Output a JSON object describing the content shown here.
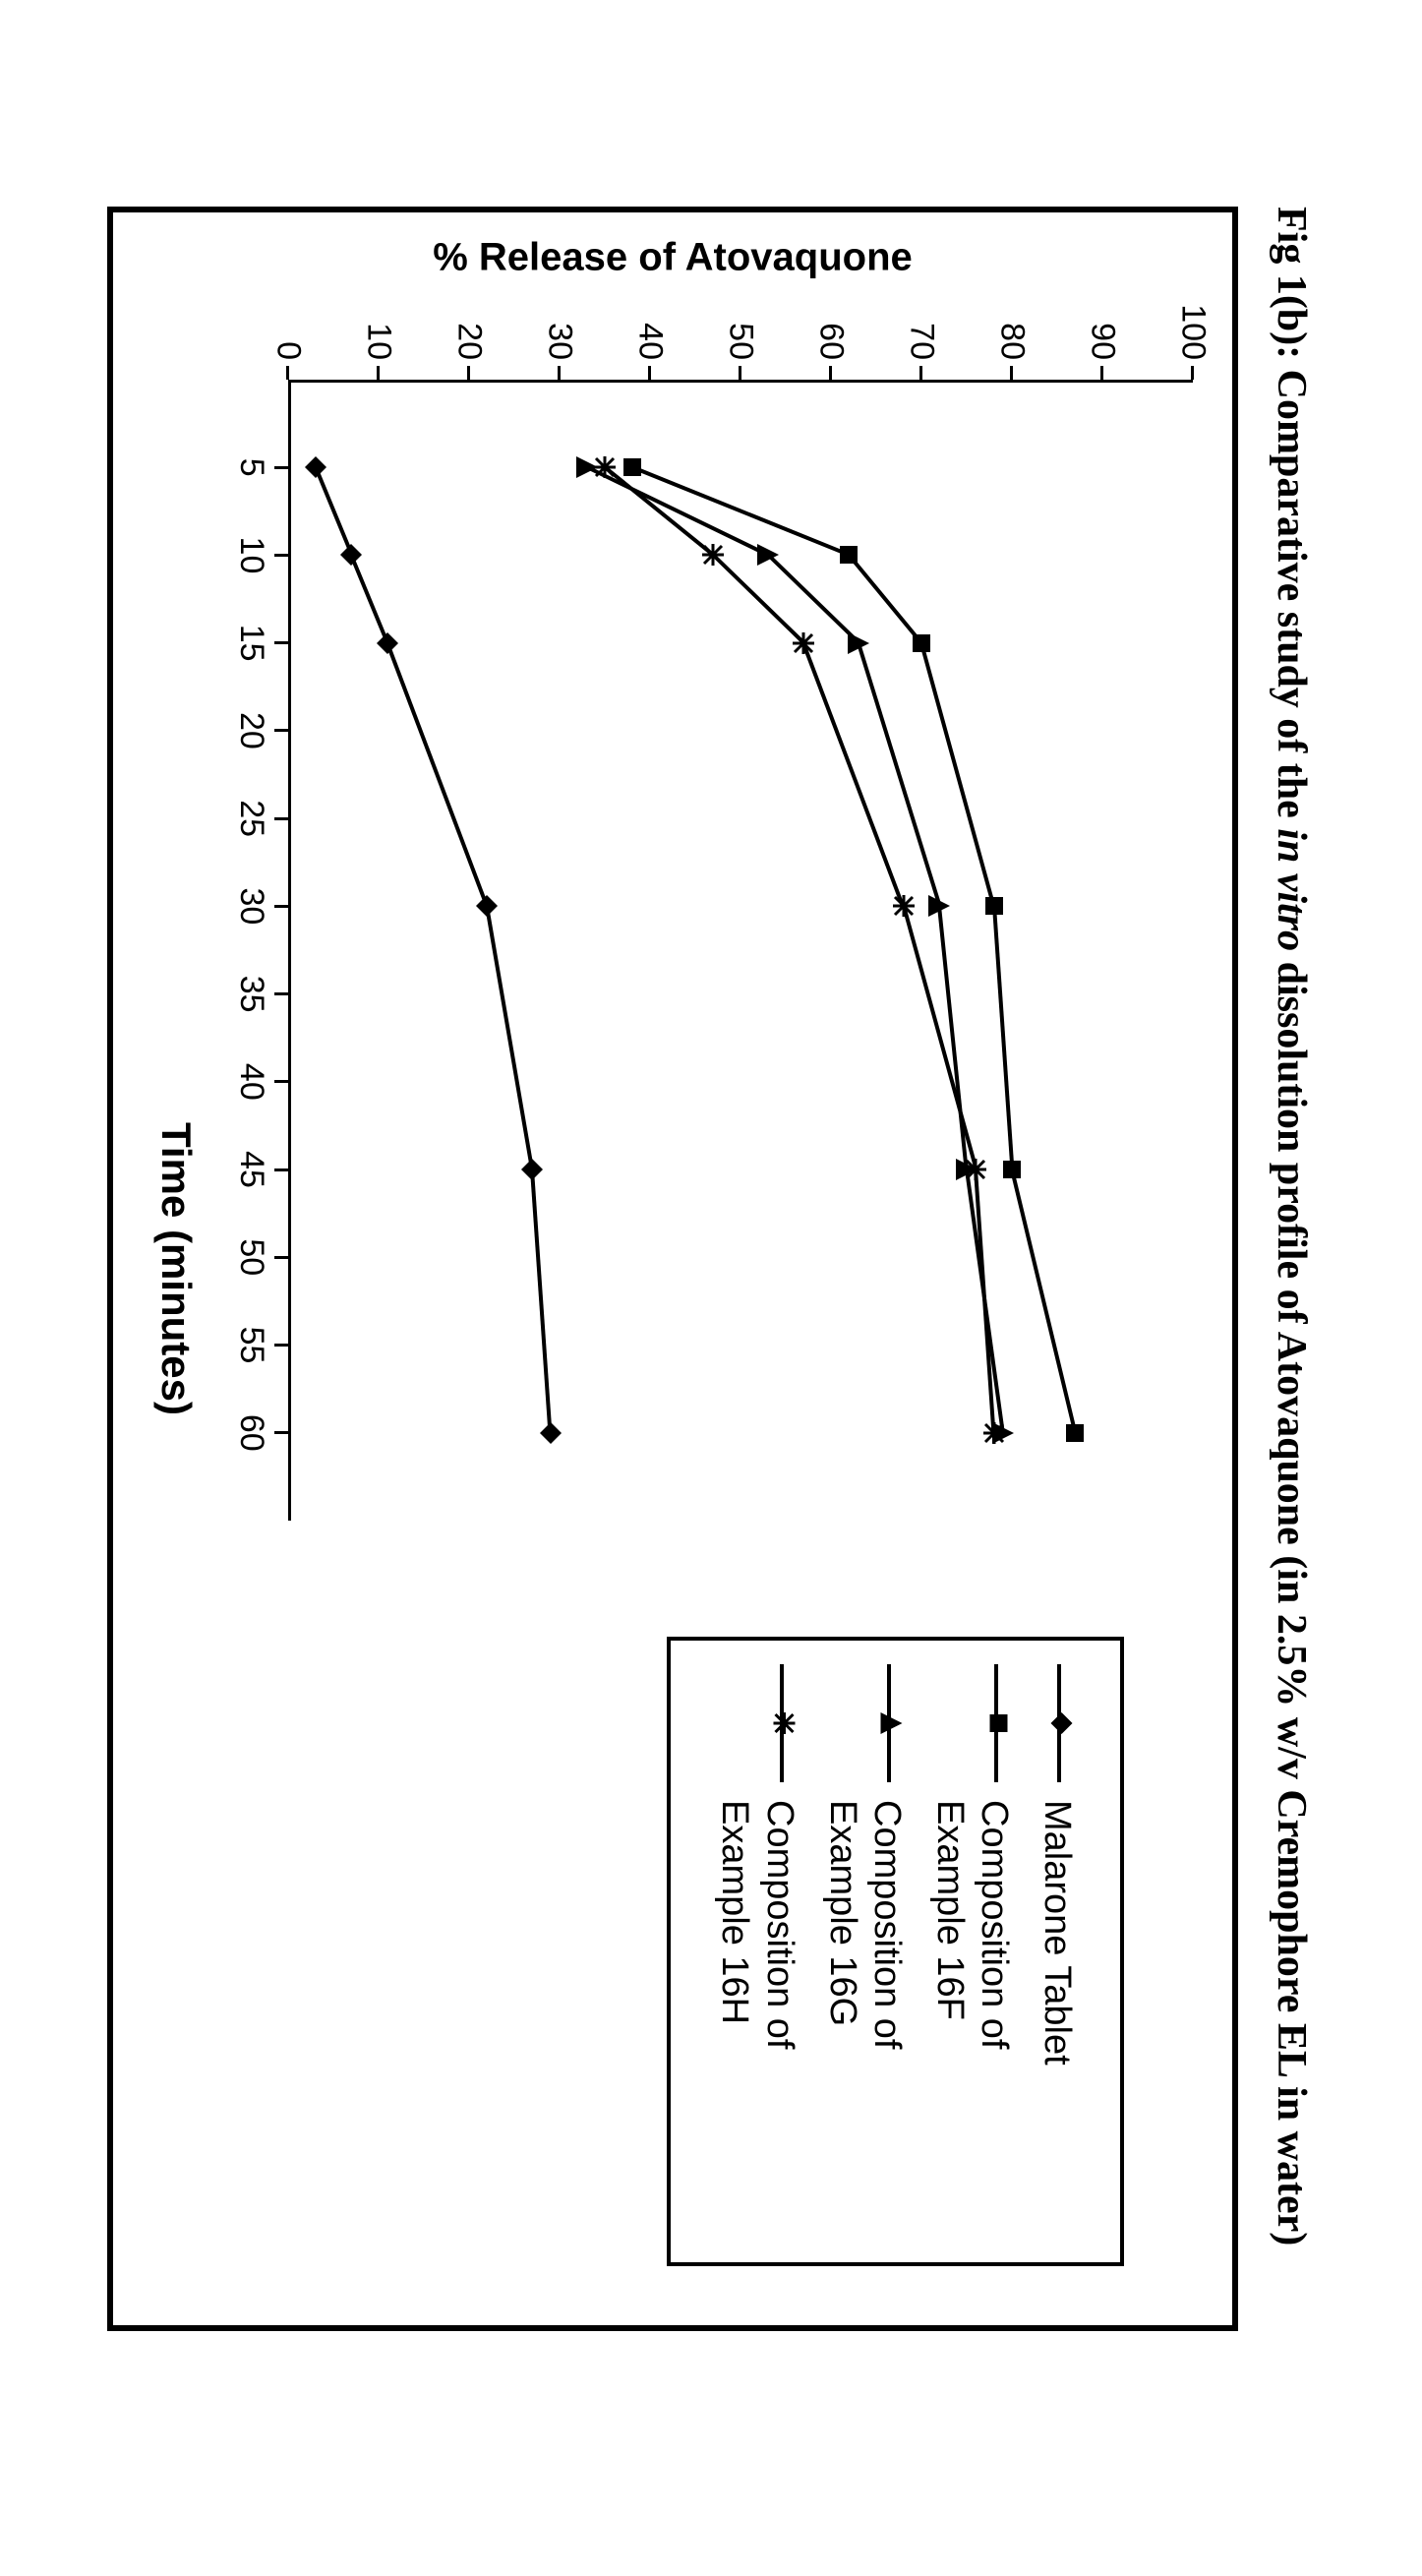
{
  "title_parts": {
    "prefix": "Fig 1(b): Comparative study of the ",
    "italic": "in vitro",
    "suffix": " dissolution profile of Atovaquone (in 2.5% w/v Cremophore EL in water)"
  },
  "chart": {
    "type": "line",
    "background_color": "#ffffff",
    "frame_border_color": "#000000",
    "axis_color": "#000000",
    "line_color": "#000000",
    "text_color": "#000000",
    "xlabel": "Time (minutes)",
    "ylabel": "% Release of Atovaquone",
    "label_fontsize": 40,
    "tick_fontsize": 34,
    "xlim": [
      0,
      65
    ],
    "ylim": [
      0,
      100
    ],
    "xticks": [
      5,
      10,
      15,
      20,
      25,
      30,
      35,
      40,
      45,
      50,
      55,
      60
    ],
    "yticks": [
      0,
      10,
      20,
      30,
      40,
      50,
      60,
      70,
      80,
      90,
      100
    ],
    "series": [
      {
        "name": "Malarone Tablet",
        "marker": "diamond",
        "marker_size": 22,
        "line_width": 4,
        "x": [
          5,
          10,
          15,
          30,
          45,
          60
        ],
        "y": [
          3,
          7,
          11,
          22,
          27,
          29
        ]
      },
      {
        "name": "Composition of Example 16F",
        "marker": "square",
        "marker_size": 18,
        "line_width": 4,
        "x": [
          5,
          10,
          15,
          30,
          45,
          60
        ],
        "y": [
          38,
          62,
          70,
          78,
          80,
          87
        ]
      },
      {
        "name": "Composition of Example 16G",
        "marker": "triangle",
        "marker_size": 22,
        "line_width": 4,
        "x": [
          5,
          10,
          15,
          30,
          45,
          60
        ],
        "y": [
          33,
          53,
          63,
          72,
          75,
          79
        ]
      },
      {
        "name": "Composition of Example 16H",
        "marker": "asterisk",
        "marker_size": 22,
        "line_width": 4,
        "x": [
          5,
          10,
          15,
          30,
          45,
          60
        ],
        "y": [
          35,
          47,
          57,
          68,
          76,
          78
        ]
      }
    ],
    "legend": {
      "position": "right-outside",
      "border_color": "#000000",
      "font_family": "Arial",
      "font_size": 38
    }
  }
}
